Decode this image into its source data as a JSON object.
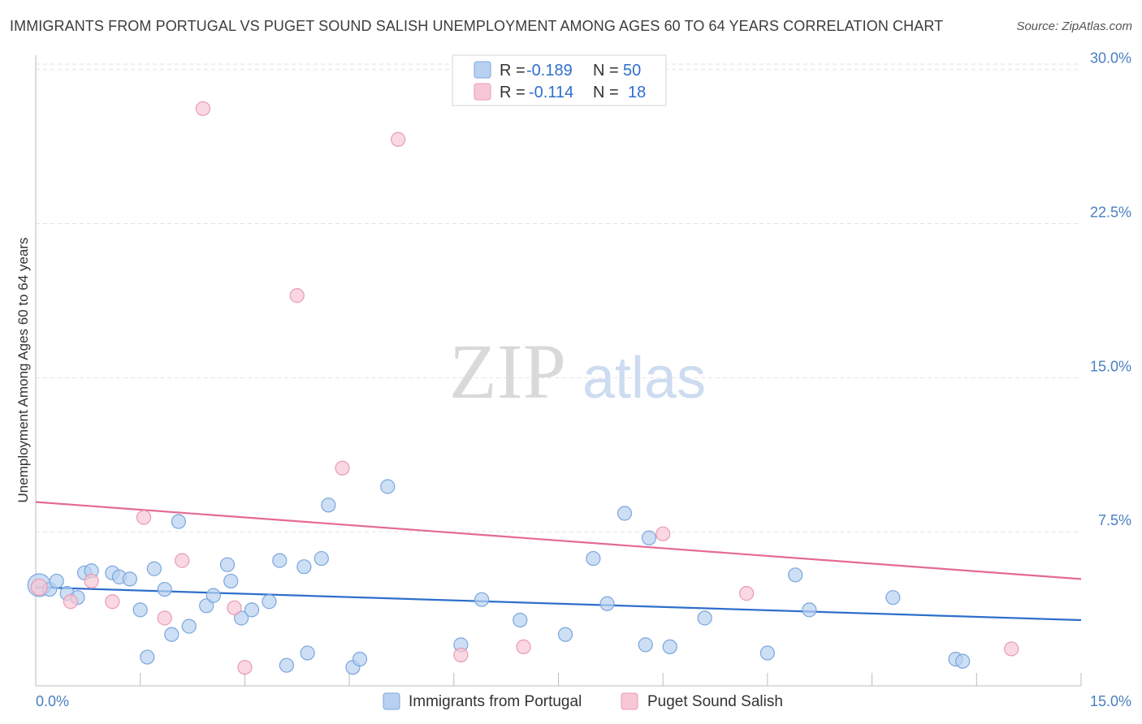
{
  "header": {
    "title": "IMMIGRANTS FROM PORTUGAL VS PUGET SOUND SALISH UNEMPLOYMENT AMONG AGES 60 TO 64 YEARS CORRELATION CHART",
    "source": "Source: ZipAtlas.com"
  },
  "watermark": {
    "zip": "ZIP",
    "atlas": "atlas"
  },
  "colors": {
    "blue_fill": "#b8d1f1",
    "blue_stroke": "#7aa6dd",
    "blue_line": "#2e6fcb",
    "pink_fill": "#f8c7d6",
    "pink_stroke": "#e99ab5",
    "pink_line": "#e46a94",
    "tick": "#4a7fc1",
    "grid": "#e2e2e2"
  },
  "legend": {
    "series1": {
      "r_label": "R =",
      "r_value": "-0.189",
      "n_label": "N =",
      "n_value": "50"
    },
    "series2": {
      "r_label": "R =",
      "r_value": "-0.114",
      "n_label": "N =",
      "n_value": "18"
    }
  },
  "chart_data": {
    "type": "scatter",
    "title": "IMMIGRANTS FROM PORTUGAL VS PUGET SOUND SALISH UNEMPLOYMENT AMONG AGES 60 TO 64 YEARS CORRELATION CHART",
    "xlabel": "",
    "ylabel": "Unemployment Among Ages 60 to 64 years",
    "xlim": [
      0,
      15
    ],
    "ylim": [
      0,
      30.7
    ],
    "x_tick_labels": [
      "0.0%",
      "15.0%"
    ],
    "y_ticks": [
      7.5,
      15.0,
      22.5,
      30.0
    ],
    "y_tick_labels": [
      "7.5%",
      "15.0%",
      "22.5%",
      "30.0%"
    ],
    "series": [
      {
        "name": "Immigrants from Portugal",
        "color": "#b8d1f1",
        "points": [
          [
            0.05,
            4.9
          ],
          [
            0.2,
            4.7
          ],
          [
            0.3,
            5.1
          ],
          [
            0.45,
            4.5
          ],
          [
            0.6,
            4.3
          ],
          [
            0.7,
            5.5
          ],
          [
            0.8,
            5.6
          ],
          [
            1.1,
            5.5
          ],
          [
            1.2,
            5.3
          ],
          [
            1.35,
            5.2
          ],
          [
            1.5,
            3.7
          ],
          [
            1.6,
            1.4
          ],
          [
            1.7,
            5.7
          ],
          [
            1.85,
            4.7
          ],
          [
            1.95,
            2.5
          ],
          [
            2.05,
            8.0
          ],
          [
            2.2,
            2.9
          ],
          [
            2.45,
            3.9
          ],
          [
            2.55,
            4.4
          ],
          [
            2.75,
            5.9
          ],
          [
            2.8,
            5.1
          ],
          [
            2.95,
            3.3
          ],
          [
            3.1,
            3.7
          ],
          [
            3.35,
            4.1
          ],
          [
            3.5,
            6.1
          ],
          [
            3.6,
            1.0
          ],
          [
            3.85,
            5.8
          ],
          [
            3.9,
            1.6
          ],
          [
            4.1,
            6.2
          ],
          [
            4.2,
            8.8
          ],
          [
            4.55,
            0.9
          ],
          [
            4.65,
            1.3
          ],
          [
            5.05,
            9.7
          ],
          [
            6.1,
            2.0
          ],
          [
            6.4,
            4.2
          ],
          [
            6.95,
            3.2
          ],
          [
            7.6,
            2.5
          ],
          [
            8.0,
            6.2
          ],
          [
            8.2,
            4.0
          ],
          [
            8.45,
            8.4
          ],
          [
            8.75,
            2.0
          ],
          [
            8.8,
            7.2
          ],
          [
            9.1,
            1.9
          ],
          [
            9.6,
            3.3
          ],
          [
            10.5,
            1.6
          ],
          [
            10.9,
            5.4
          ],
          [
            11.1,
            3.7
          ],
          [
            12.3,
            4.3
          ],
          [
            13.2,
            1.3
          ],
          [
            13.3,
            1.2
          ]
        ]
      },
      {
        "name": "Puget Sound Salish",
        "color": "#f8c7d6",
        "points": [
          [
            0.05,
            4.8
          ],
          [
            0.5,
            4.1
          ],
          [
            0.8,
            5.1
          ],
          [
            1.1,
            4.1
          ],
          [
            1.55,
            8.2
          ],
          [
            1.85,
            3.3
          ],
          [
            2.1,
            6.1
          ],
          [
            2.4,
            28.1
          ],
          [
            2.85,
            3.8
          ],
          [
            3.0,
            0.9
          ],
          [
            3.75,
            19.0
          ],
          [
            4.4,
            10.6
          ],
          [
            5.2,
            26.6
          ],
          [
            6.1,
            1.5
          ],
          [
            7.0,
            1.9
          ],
          [
            9.0,
            7.4
          ],
          [
            10.2,
            4.5
          ],
          [
            14.0,
            1.8
          ]
        ]
      }
    ],
    "trend_lines": [
      {
        "name": "Immigrants from Portugal",
        "x": [
          0,
          15
        ],
        "y": [
          4.8,
          3.2
        ]
      },
      {
        "name": "Puget Sound Salish",
        "x": [
          0,
          15
        ],
        "y": [
          8.95,
          5.2
        ]
      }
    ],
    "legend_entries": [
      "Immigrants from Portugal",
      "Puget Sound Salish"
    ]
  }
}
